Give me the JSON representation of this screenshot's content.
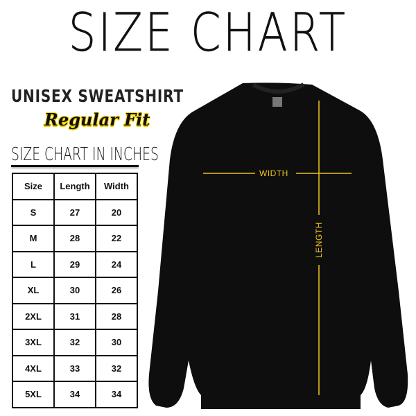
{
  "title": "SIZE CHART",
  "subtitle": "UNISEX SWEATSHIRT",
  "fit": "Regular Fit",
  "table_title": "SIZE CHART IN INCHES",
  "table": {
    "headers": [
      "Size",
      "Length",
      "Width"
    ],
    "rows": [
      [
        "S",
        "27",
        "20"
      ],
      [
        "M",
        "28",
        "22"
      ],
      [
        "L",
        "29",
        "24"
      ],
      [
        "XL",
        "30",
        "26"
      ],
      [
        "2XL",
        "31",
        "28"
      ],
      [
        "3XL",
        "32",
        "30"
      ],
      [
        "4XL",
        "33",
        "32"
      ],
      [
        "5XL",
        "34",
        "34"
      ]
    ]
  },
  "measure": {
    "width_label": "WIDTH",
    "length_label": "LENGTH",
    "line_color": "#f2c21b"
  },
  "colors": {
    "shirt": "#0e0e0e",
    "accent": "#f5d300"
  }
}
